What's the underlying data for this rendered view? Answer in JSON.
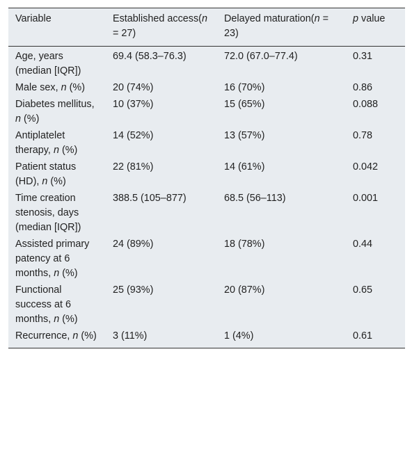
{
  "table": {
    "header": [
      [
        "Variable"
      ],
      [
        "Established access(",
        {
          "italic": "n"
        },
        " = 27)"
      ],
      [
        "Delayed maturation(",
        {
          "italic": "n"
        },
        " = 23)"
      ],
      [
        {
          "italic": "p"
        },
        " value"
      ]
    ],
    "rows": [
      [
        [
          "Age, years (median [IQR])"
        ],
        [
          "69.4 (58.3–76.3)"
        ],
        [
          "72.0 (67.0–77.4)"
        ],
        [
          "0.31"
        ]
      ],
      [
        [
          "Male sex, ",
          {
            "italic": "n"
          },
          " (%)"
        ],
        [
          "20 (74%)"
        ],
        [
          "16 (70%)"
        ],
        [
          "0.86"
        ]
      ],
      [
        [
          "Diabetes mellitus, ",
          {
            "italic": "n"
          },
          " (%)"
        ],
        [
          "10 (37%)"
        ],
        [
          "15 (65%)"
        ],
        [
          "0.088"
        ]
      ],
      [
        [
          "Antiplatelet therapy, ",
          {
            "italic": "n"
          },
          " (%)"
        ],
        [
          "14 (52%)"
        ],
        [
          "13 (57%)"
        ],
        [
          "0.78"
        ]
      ],
      [
        [
          "Patient status (HD), ",
          {
            "italic": "n"
          },
          " (%)"
        ],
        [
          "22 (81%)"
        ],
        [
          "14 (61%)"
        ],
        [
          "0.042"
        ]
      ],
      [
        [
          "Time creation stenosis, days (median [IQR])"
        ],
        [
          "388.5 (105–877)"
        ],
        [
          "68.5 (56–113)"
        ],
        [
          "0.001"
        ]
      ],
      [
        [
          "Assisted primary patency at 6 months, ",
          {
            "italic": "n"
          },
          " (%)"
        ],
        [
          "24 (89%)"
        ],
        [
          "18 (78%)"
        ],
        [
          "0.44"
        ]
      ],
      [
        [
          "Functional success at 6 months, ",
          {
            "italic": "n"
          },
          " (%)"
        ],
        [
          "25 (93%)"
        ],
        [
          "20 (87%)"
        ],
        [
          "0.65"
        ]
      ],
      [
        [
          "Recurrence, ",
          {
            "italic": "n"
          },
          " (%)"
        ],
        [
          "3 (11%)"
        ],
        [
          "1 (4%)"
        ],
        [
          "0.61"
        ]
      ]
    ]
  }
}
